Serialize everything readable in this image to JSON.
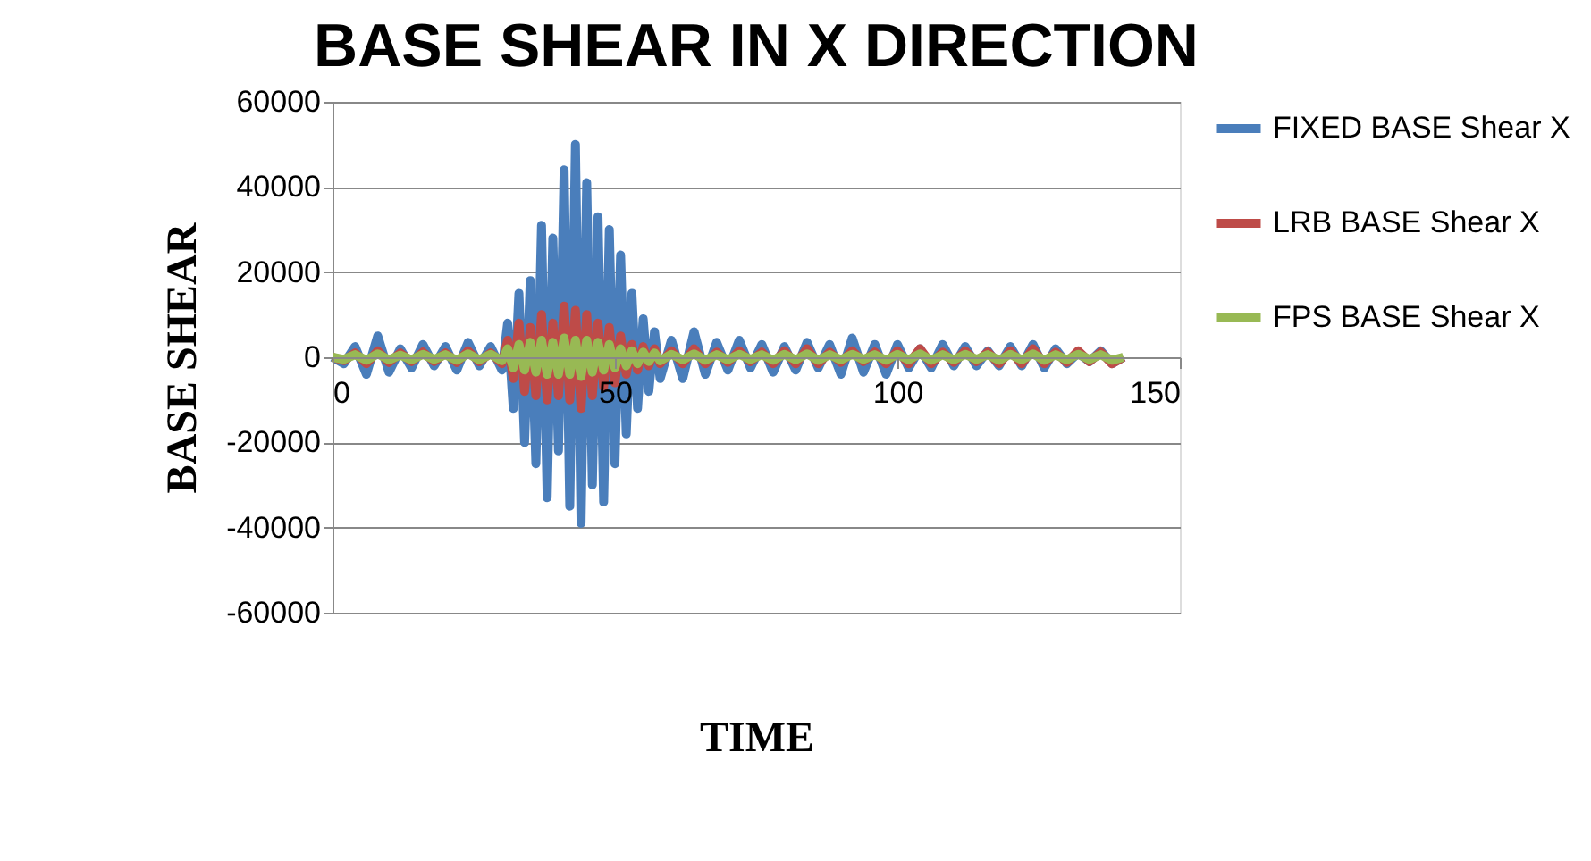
{
  "chart_data": {
    "type": "line",
    "title": "BASE SHEAR IN X DIRECTION",
    "xlabel": "TIME",
    "ylabel": "BASE SHEAR",
    "x": [
      0,
      2,
      4,
      6,
      8,
      10,
      12,
      14,
      16,
      18,
      20,
      22,
      24,
      26,
      28,
      30,
      31,
      32,
      33,
      34,
      35,
      36,
      37,
      38,
      39,
      40,
      41,
      42,
      43,
      44,
      45,
      46,
      47,
      48,
      49,
      50,
      51,
      52,
      53,
      54,
      55,
      56,
      57,
      58,
      60,
      62,
      64,
      66,
      68,
      70,
      72,
      74,
      76,
      78,
      80,
      82,
      84,
      86,
      88,
      90,
      92,
      94,
      96,
      98,
      100,
      102,
      104,
      106,
      108,
      110,
      112,
      114,
      116,
      118,
      120,
      122,
      124,
      126,
      128,
      130,
      132,
      134,
      136,
      138,
      140
    ],
    "series": [
      {
        "name": "FIXED BASE Shear X",
        "color": "#4a7ebb",
        "values": [
          0,
          -1500,
          2500,
          -4000,
          5000,
          -3500,
          2000,
          -2500,
          3000,
          -2000,
          2500,
          -3000,
          3500,
          -2000,
          2500,
          -3000,
          8000,
          -12000,
          15000,
          -20000,
          18000,
          -25000,
          31000,
          -33000,
          28000,
          -22000,
          44000,
          -35000,
          50000,
          -39000,
          41000,
          -30000,
          33000,
          -34000,
          30000,
          -25000,
          24000,
          -18000,
          15000,
          -12000,
          9000,
          -8000,
          6000,
          -5000,
          4000,
          -5000,
          6000,
          -4000,
          3500,
          -3000,
          4000,
          -2500,
          3000,
          -3500,
          2500,
          -3000,
          3500,
          -2500,
          3000,
          -4000,
          4500,
          -3500,
          3000,
          -4000,
          3000,
          -2500,
          2000,
          -2500,
          3000,
          -2000,
          2500,
          -2000,
          1500,
          -2000,
          2500,
          -2000,
          3000,
          -2500,
          2000,
          -1500,
          1000,
          -1000,
          1500,
          -1500,
          0
        ]
      },
      {
        "name": "LRB BASE Shear X",
        "color": "#be4b48",
        "values": [
          0,
          -800,
          1000,
          -1500,
          1500,
          -1200,
          1000,
          -1000,
          1200,
          -1000,
          1000,
          -1200,
          1500,
          -1000,
          1000,
          -1500,
          4000,
          -5000,
          8000,
          -8000,
          7000,
          -9000,
          10000,
          -10000,
          8000,
          -9000,
          12000,
          -10000,
          11000,
          -12000,
          10000,
          -9000,
          8000,
          -7000,
          7000,
          -6000,
          5000,
          -4000,
          3000,
          -3000,
          2500,
          -2000,
          2000,
          -1500,
          1500,
          -1500,
          2000,
          -1500,
          1200,
          -1200,
          1500,
          -1000,
          1200,
          -1500,
          1500,
          -1500,
          2000,
          -1500,
          1200,
          -1200,
          1500,
          -1000,
          1200,
          -1500,
          1500,
          -1500,
          2000,
          -1500,
          1200,
          -1200,
          1500,
          -1000,
          1200,
          -1500,
          1500,
          -1500,
          2000,
          -1500,
          1200,
          -1200,
          1500,
          -1000,
          1200,
          -1500,
          0
        ]
      },
      {
        "name": "FPS BASE Shear  X",
        "color": "#98b954",
        "values": [
          0,
          -500,
          600,
          -700,
          800,
          -600,
          500,
          -600,
          700,
          -500,
          600,
          -700,
          800,
          -600,
          700,
          -800,
          2000,
          -2500,
          3000,
          -3000,
          3500,
          -3500,
          4000,
          -4000,
          3500,
          -4000,
          4500,
          -4000,
          4000,
          -4500,
          4000,
          -3500,
          3500,
          -3000,
          3000,
          -2500,
          2000,
          -2000,
          1500,
          -1500,
          1200,
          -1000,
          1000,
          -800,
          700,
          -600,
          800,
          -700,
          600,
          -600,
          700,
          -500,
          600,
          -700,
          700,
          -600,
          800,
          -700,
          600,
          -600,
          700,
          -500,
          600,
          -700,
          700,
          -600,
          800,
          -700,
          600,
          -600,
          700,
          -500,
          600,
          -700,
          700,
          -600,
          800,
          -700,
          600,
          -600,
          700,
          -500,
          600,
          -700,
          0
        ]
      }
    ],
    "xlim": [
      0,
      150
    ],
    "xticks": [
      0,
      50,
      100,
      150
    ],
    "ylim": [
      -60000,
      60000
    ],
    "yticks": [
      -60000,
      -40000,
      -20000,
      0,
      20000,
      40000,
      60000
    ],
    "grid": "y",
    "legend": "right",
    "line_style": "solid",
    "marker": "none"
  }
}
